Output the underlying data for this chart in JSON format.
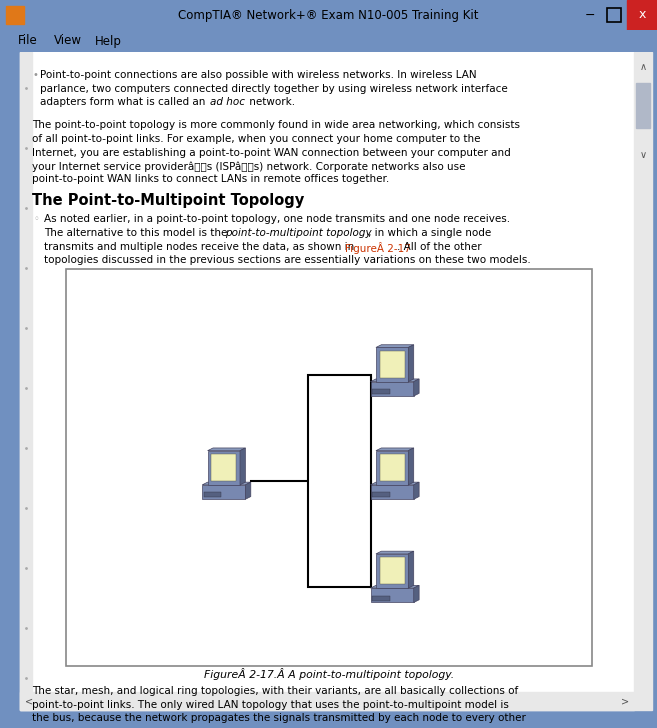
{
  "title_bar_text": "CompTIA® Network+® Exam N10-005 Training Kit",
  "title_bar_bg": "#7090c0",
  "close_btn_color": "#cc2222",
  "menu_items": [
    "File",
    "View",
    "Help"
  ],
  "menu_bg": "#f0f0f0",
  "body_bg": "#f0f0f0",
  "scrollbar_bg": "#e0e0e0",
  "link_color": "#cc3300",
  "font_size_body": 7.5,
  "font_size_heading": 10.5,
  "font_size_caption": 7.8,
  "diagram_border": "#888888",
  "computer_body": "#7888b0",
  "computer_screen": "#f0f0b8",
  "computer_dark": "#556080",
  "computer_mid": "#8898bb"
}
